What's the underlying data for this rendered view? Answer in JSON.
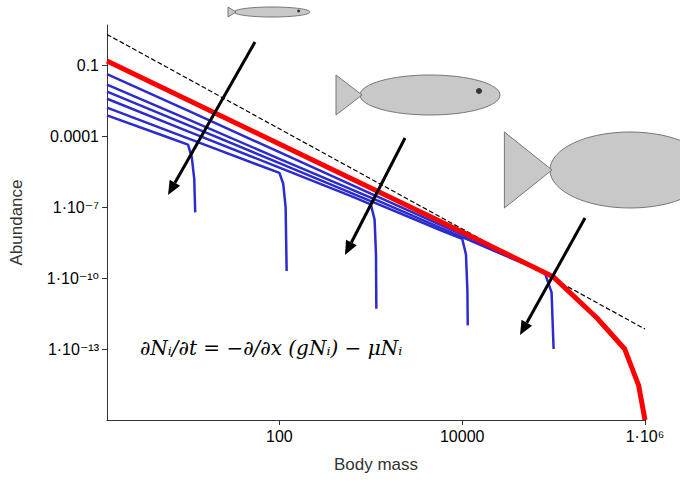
{
  "chart_data": {
    "type": "line",
    "x_label": "Body mass",
    "y_label": "Abundance",
    "equation": "∂Nᵢ/∂t = −∂/∂x (gNᵢ) − μNᵢ",
    "log": true,
    "grid": false,
    "xlim": [
      1.3,
      1000000
    ],
    "ylim": [
      1e-16,
      5
    ],
    "xticks": [
      100,
      10000,
      {
        "value": 1000000,
        "label": "1·10⁶"
      }
    ],
    "yticks": [
      0.1,
      0.0001,
      {
        "value": 1e-07,
        "label": "1·10⁻⁷"
      },
      {
        "value": 1e-10,
        "label": "1·10⁻¹⁰"
      },
      {
        "value": 1e-13,
        "label": "1·10⁻¹³"
      }
    ],
    "series": [
      {
        "color": "#000000",
        "line_style": "dashed",
        "x": [
          1.3,
          1000000
        ],
        "values": [
          2,
          7e-13
        ]
      },
      {
        "color": "#2b2bd0",
        "line_style": "solid",
        "x": [
          1.3,
          6,
          10,
          11,
          11.7,
          12
        ],
        "values": [
          0.00076,
          9e-05,
          4.4e-05,
          1.3e-05,
          1.6e-06,
          6e-08
        ]
      },
      {
        "color": "#2b2bd0",
        "line_style": "solid",
        "x": [
          1.3,
          10,
          60,
          100,
          110,
          117,
          120
        ],
        "values": [
          0.0016,
          8e-05,
          5.9e-06,
          2.8e-06,
          1e-06,
          1e-07,
          2e-10
        ]
      },
      {
        "color": "#2b2bd0",
        "line_style": "solid",
        "x": [
          1.3,
          10,
          100,
          600,
          1000,
          1100,
          1140,
          1150
        ],
        "values": [
          0.0038,
          0.00016,
          4.7e-06,
          3e-07,
          1.3e-07,
          3e-08,
          1e-09,
          5e-12
        ]
      },
      {
        "color": "#2b2bd0",
        "line_style": "solid",
        "x": [
          1.3,
          10,
          100,
          1000,
          6000,
          10000,
          11000,
          11400,
          11500
        ],
        "values": [
          0.0076,
          0.00029,
          7.2e-06,
          1.8e-07,
          1e-08,
          4.6e-09,
          1e-09,
          3e-11,
          1e-12
        ]
      },
      {
        "color": "#2b2bd0",
        "line_style": "solid",
        "x": [
          1.3,
          10,
          100,
          1000,
          10000,
          50000,
          80000,
          95000,
          100000
        ],
        "values": [
          0.015,
          0.00051,
          1.1e-05,
          2.5e-07,
          5.4e-09,
          3.7e-10,
          1.7e-10,
          2.5e-11,
          1e-13
        ]
      },
      {
        "color": "#2b2bd0",
        "line_style": "solid",
        "x": [
          1.3,
          10,
          100,
          1000,
          10000,
          100000,
          300000,
          600000,
          850000,
          1000000
        ],
        "values": [
          0.042,
          0.0012,
          2.1e-05,
          3.7e-07,
          6.8e-09,
          1.2e-10,
          1.8e-12,
          9e-14,
          2.5e-15,
          1e-16
        ]
      },
      {
        "color": "#ff0000",
        "line_style": "solid",
        "x": [
          1.3,
          10,
          100,
          1000,
          10000,
          100000,
          300000,
          600000,
          850000,
          1000000
        ],
        "values": [
          0.15,
          0.0034,
          4.7e-05,
          6.5e-07,
          8.9e-09,
          1.1e-10,
          2e-12,
          1e-13,
          3e-15,
          1e-16
        ]
      }
    ]
  }
}
